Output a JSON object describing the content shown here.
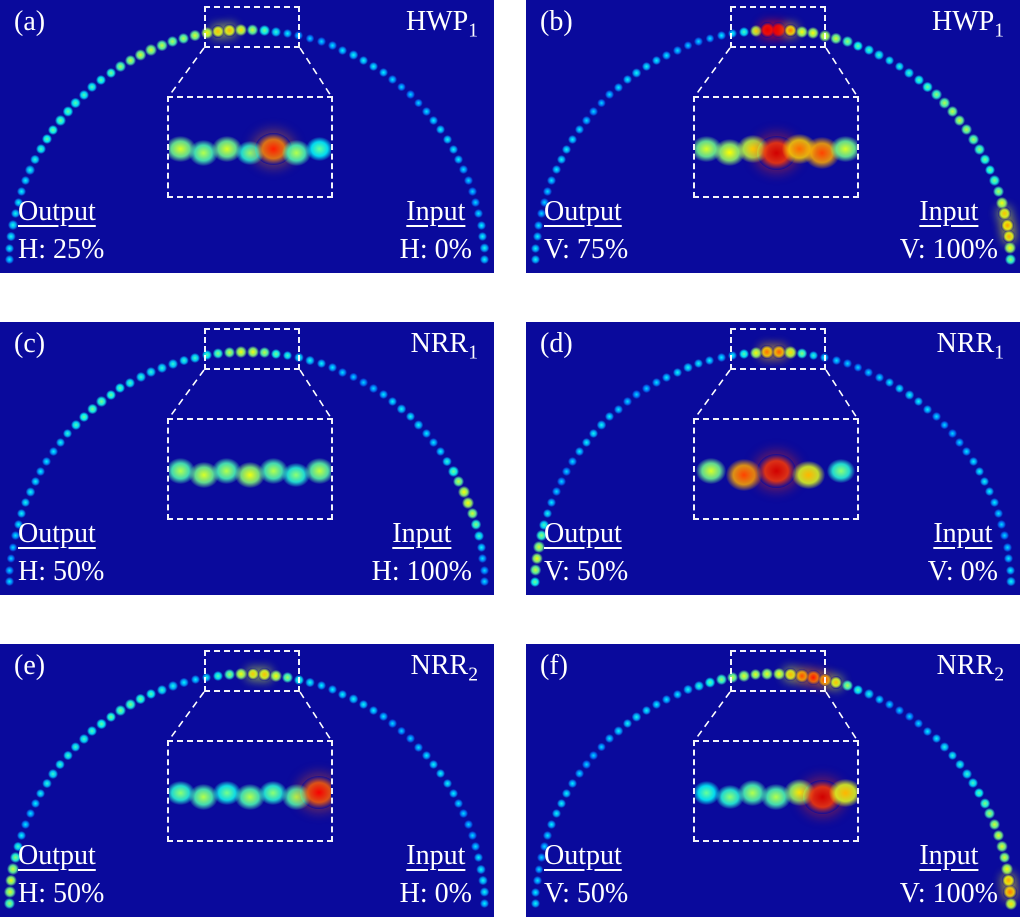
{
  "figure": {
    "colormap": "jet",
    "colors": {
      "panel_background": "#0a0a9c",
      "annotation": "#ffffff"
    },
    "panels": [
      {
        "id": "(a)",
        "device": "HWP",
        "device_sub": "1",
        "output": {
          "label": "Output",
          "value": "H: 25%"
        },
        "input": {
          "label": "Input",
          "value": "H: 0%"
        },
        "zoom_blob_intensities": [
          0.55,
          0.5,
          0.55,
          0.45,
          0.9,
          0.5,
          0.4
        ],
        "arc_hotspots": [
          {
            "t": 0.47,
            "w": 0.05,
            "gain": 0.5
          },
          {
            "t": 0.36,
            "w": 0.08,
            "gain": 0.3
          },
          {
            "t": 0.2,
            "w": 0.1,
            "gain": 0.15
          }
        ]
      },
      {
        "id": "(b)",
        "device": "HWP",
        "device_sub": "1",
        "output": {
          "label": "Output",
          "value": "V: 75%"
        },
        "input": {
          "label": "Input",
          "value": "V: 100%"
        },
        "zoom_blob_intensities": [
          0.55,
          0.6,
          0.65,
          1.0,
          0.8,
          0.85,
          0.55
        ],
        "arc_hotspots": [
          {
            "t": 0.5,
            "w": 0.025,
            "gain": 0.95
          },
          {
            "t": 0.56,
            "w": 0.05,
            "gain": 0.45
          },
          {
            "t": 0.8,
            "w": 0.12,
            "gain": 0.3
          },
          {
            "t": 0.96,
            "w": 0.05,
            "gain": 0.5
          }
        ]
      },
      {
        "id": "(c)",
        "device": "NRR",
        "device_sub": "1",
        "output": {
          "label": "Output",
          "value": "H: 50%"
        },
        "input": {
          "label": "Input",
          "value": "H: 100%"
        },
        "zoom_blob_intensities": [
          0.5,
          0.55,
          0.5,
          0.58,
          0.5,
          0.45,
          0.52
        ],
        "arc_hotspots": [
          {
            "t": 0.5,
            "w": 0.045,
            "gain": 0.45
          },
          {
            "t": 0.3,
            "w": 0.1,
            "gain": 0.18
          },
          {
            "t": 0.88,
            "w": 0.05,
            "gain": 0.4
          }
        ]
      },
      {
        "id": "(d)",
        "device": "NRR",
        "device_sub": "1",
        "output": {
          "label": "Output",
          "value": "V: 50%"
        },
        "input": {
          "label": "Input",
          "value": "V: 0%"
        },
        "zoom_blob_intensities": [
          0.55,
          0.85,
          1.0,
          0.7,
          0.45
        ],
        "arc_hotspots": [
          {
            "t": 0.5,
            "w": 0.035,
            "gain": 0.7
          },
          {
            "t": 0.03,
            "w": 0.04,
            "gain": 0.4
          }
        ]
      },
      {
        "id": "(e)",
        "device": "NRR",
        "device_sub": "2",
        "output": {
          "label": "Output",
          "value": "H: 50%"
        },
        "input": {
          "label": "Input",
          "value": "H: 0%"
        },
        "zoom_blob_intensities": [
          0.45,
          0.5,
          0.42,
          0.5,
          0.45,
          0.5,
          0.95
        ],
        "arc_hotspots": [
          {
            "t": 0.52,
            "w": 0.05,
            "gain": 0.5
          },
          {
            "t": 0.3,
            "w": 0.1,
            "gain": 0.2
          },
          {
            "t": 0.03,
            "w": 0.05,
            "gain": 0.35
          }
        ]
      },
      {
        "id": "(f)",
        "device": "NRR",
        "device_sub": "2",
        "output": {
          "label": "Output",
          "value": "V: 50%"
        },
        "input": {
          "label": "Input",
          "value": "V: 100%"
        },
        "zoom_blob_intensities": [
          0.4,
          0.45,
          0.5,
          0.5,
          0.6,
          1.0,
          0.7
        ],
        "arc_hotspots": [
          {
            "t": 0.56,
            "w": 0.04,
            "gain": 0.7
          },
          {
            "t": 0.48,
            "w": 0.08,
            "gain": 0.35
          },
          {
            "t": 0.9,
            "w": 0.08,
            "gain": 0.35
          },
          {
            "t": 0.985,
            "w": 0.03,
            "gain": 0.55
          }
        ]
      }
    ]
  }
}
